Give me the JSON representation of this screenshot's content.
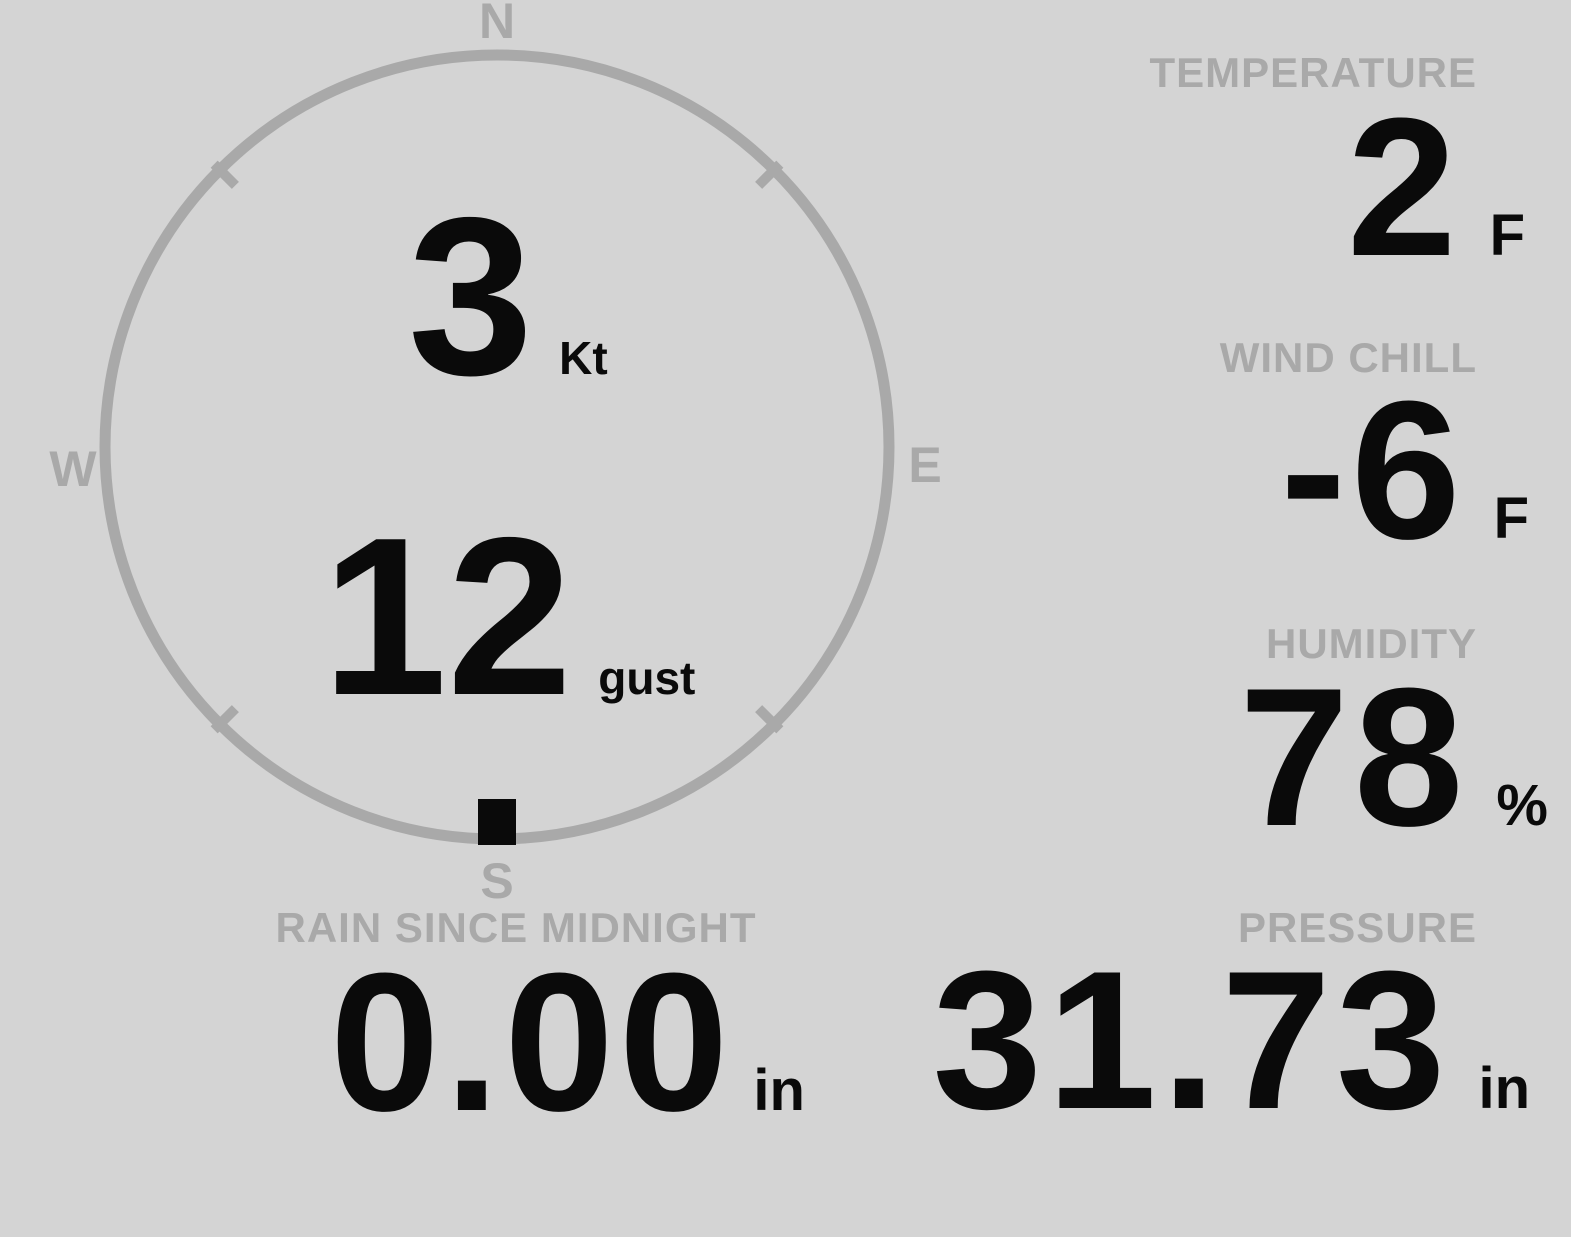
{
  "theme": {
    "background": "#d4d4d4",
    "muted_color": "#a9a9a9",
    "value_color": "#0a0a0a"
  },
  "wind": {
    "compass": {
      "north": "N",
      "east": "E",
      "south": "S",
      "west": "W"
    },
    "speed": {
      "value": "3",
      "unit": "Kt"
    },
    "gust": {
      "value": "12",
      "unit": "gust"
    },
    "direction_degrees": 180
  },
  "metrics": {
    "temperature": {
      "label": "TEMPERATURE",
      "value": "2",
      "unit": "F"
    },
    "wind_chill": {
      "label": "WIND CHILL",
      "value": "-6",
      "unit": "F"
    },
    "humidity": {
      "label": "HUMIDITY",
      "value": "78",
      "unit": "%"
    },
    "pressure": {
      "label": "PRESSURE",
      "value": "31.73",
      "unit": "in"
    },
    "rain_since_midnight": {
      "label": "RAIN SINCE MIDNIGHT",
      "value": "0.00",
      "unit": "in"
    }
  }
}
